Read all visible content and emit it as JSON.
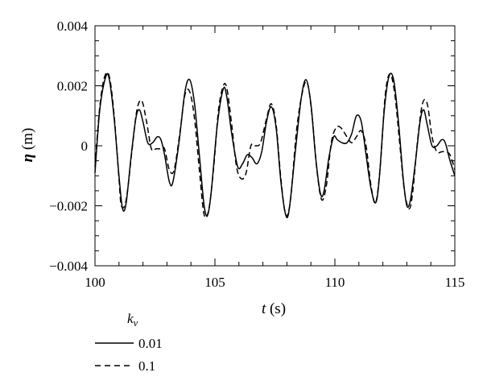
{
  "chart_data": {
    "type": "line",
    "xlabel_symbol": "t",
    "xlabel_unit": " (s)",
    "ylabel_symbol": "η",
    "ylabel_unit": " (m)",
    "xlim": [
      100,
      115
    ],
    "ylim": [
      -0.004,
      0.004
    ],
    "x_ticks": [
      100,
      105,
      110,
      115
    ],
    "x_tick_labels": [
      "100",
      "105",
      "110",
      "115"
    ],
    "y_ticks": [
      -0.004,
      -0.002,
      0,
      0.002,
      0.004
    ],
    "y_tick_labels": [
      "−0.004",
      "−0.002",
      "0",
      "0.002",
      "0.004"
    ],
    "grid": false,
    "legend_title_main": "k",
    "legend_title_sub": "v",
    "legend_placement": "below-left",
    "series": [
      {
        "name": "0.01",
        "style": "solid",
        "color": "#000000",
        "points": [
          [
            100.0,
            -0.0009
          ],
          [
            100.2,
            0.0012
          ],
          [
            100.45,
            0.0023
          ],
          [
            100.6,
            0.0022
          ],
          [
            100.8,
            0.0009
          ],
          [
            101.0,
            -0.001
          ],
          [
            101.15,
            -0.0021
          ],
          [
            101.3,
            -0.0019
          ],
          [
            101.5,
            -0.0004
          ],
          [
            101.7,
            0.0009
          ],
          [
            101.85,
            0.0012
          ],
          [
            102.0,
            0.0008
          ],
          [
            102.2,
            0.0001
          ],
          [
            102.4,
            0.0001
          ],
          [
            102.6,
            0.0003
          ],
          [
            102.75,
            0.0002
          ],
          [
            102.9,
            -0.0003
          ],
          [
            103.1,
            -0.0012
          ],
          [
            103.25,
            -0.0012
          ],
          [
            103.5,
            0.0001
          ],
          [
            103.75,
            0.0018
          ],
          [
            103.95,
            0.0022
          ],
          [
            104.15,
            0.0014
          ],
          [
            104.35,
            -0.0003
          ],
          [
            104.55,
            -0.002
          ],
          [
            104.7,
            -0.0023
          ],
          [
            104.85,
            -0.0015
          ],
          [
            105.1,
            0.0007
          ],
          [
            105.35,
            0.0019
          ],
          [
            105.5,
            0.0016
          ],
          [
            105.7,
            0.0004
          ],
          [
            105.95,
            -0.0007
          ],
          [
            106.15,
            -0.0006
          ],
          [
            106.35,
            -0.0003
          ],
          [
            106.55,
            -0.0004
          ],
          [
            106.75,
            -0.0006
          ],
          [
            106.95,
            -0.0002
          ],
          [
            107.15,
            0.0008
          ],
          [
            107.35,
            0.0013
          ],
          [
            107.55,
            0.0006
          ],
          [
            107.75,
            -0.0012
          ],
          [
            107.95,
            -0.0023
          ],
          [
            108.1,
            -0.0021
          ],
          [
            108.35,
            -0.0002
          ],
          [
            108.6,
            0.0016
          ],
          [
            108.8,
            0.0022
          ],
          [
            109.0,
            0.0014
          ],
          [
            109.2,
            -0.0004
          ],
          [
            109.4,
            -0.0016
          ],
          [
            109.55,
            -0.0015
          ],
          [
            109.75,
            -0.0004
          ],
          [
            109.95,
            0.0003
          ],
          [
            110.1,
            0.0002
          ],
          [
            110.3,
            0.0001
          ],
          [
            110.5,
            0.0001
          ],
          [
            110.7,
            0.0004
          ],
          [
            110.9,
            0.001
          ],
          [
            111.1,
            0.0008
          ],
          [
            111.3,
            -0.0003
          ],
          [
            111.5,
            -0.0014
          ],
          [
            111.7,
            -0.0019
          ],
          [
            111.85,
            -0.0011
          ],
          [
            112.05,
            0.0011
          ],
          [
            112.25,
            0.0023
          ],
          [
            112.45,
            0.0022
          ],
          [
            112.65,
            0.0008
          ],
          [
            112.85,
            -0.0011
          ],
          [
            113.0,
            -0.002
          ],
          [
            113.15,
            -0.0018
          ],
          [
            113.35,
            -0.0006
          ],
          [
            113.55,
            0.0008
          ],
          [
            113.7,
            0.0012
          ],
          [
            113.85,
            0.0007
          ],
          [
            114.05,
            0.0
          ],
          [
            114.25,
            0.0
          ],
          [
            114.45,
            0.0002
          ],
          [
            114.6,
            0.0001
          ],
          [
            114.8,
            -0.0005
          ],
          [
            115.0,
            -0.001
          ]
        ]
      },
      {
        "name": "0.1",
        "style": "dashed",
        "color": "#000000",
        "points": [
          [
            100.0,
            -0.0007
          ],
          [
            100.2,
            0.0013
          ],
          [
            100.4,
            0.0023
          ],
          [
            100.6,
            0.0023
          ],
          [
            100.8,
            0.001
          ],
          [
            101.0,
            -0.0011
          ],
          [
            101.1,
            -0.002
          ],
          [
            101.3,
            -0.0018
          ],
          [
            101.55,
            -0.0001
          ],
          [
            101.75,
            0.0012
          ],
          [
            101.95,
            0.0015
          ],
          [
            102.15,
            0.0008
          ],
          [
            102.35,
            -0.0001
          ],
          [
            102.55,
            -0.0001
          ],
          [
            102.75,
            -0.0001
          ],
          [
            102.9,
            -0.0001
          ],
          [
            103.1,
            -0.0008
          ],
          [
            103.3,
            -0.0008
          ],
          [
            103.55,
            0.0005
          ],
          [
            103.75,
            0.0017
          ],
          [
            103.95,
            0.0018
          ],
          [
            104.15,
            0.0009
          ],
          [
            104.35,
            -0.0008
          ],
          [
            104.55,
            -0.0023
          ],
          [
            104.75,
            -0.0021
          ],
          [
            104.95,
            -0.0007
          ],
          [
            105.15,
            0.0012
          ],
          [
            105.35,
            0.002
          ],
          [
            105.5,
            0.0019
          ],
          [
            105.7,
            0.0007
          ],
          [
            105.9,
            -0.0007
          ],
          [
            106.1,
            -0.0011
          ],
          [
            106.3,
            -0.0009
          ],
          [
            106.5,
            0.0
          ],
          [
            106.7,
            0.0
          ],
          [
            106.9,
            0.0001
          ],
          [
            107.15,
            0.0009
          ],
          [
            107.35,
            0.0014
          ],
          [
            107.55,
            0.0007
          ],
          [
            107.75,
            -0.0011
          ],
          [
            107.95,
            -0.0023
          ],
          [
            108.15,
            -0.0018
          ],
          [
            108.4,
            0.0005
          ],
          [
            108.65,
            0.0018
          ],
          [
            108.85,
            0.0021
          ],
          [
            109.05,
            0.001
          ],
          [
            109.25,
            -0.0008
          ],
          [
            109.45,
            -0.0018
          ],
          [
            109.65,
            -0.0013
          ],
          [
            109.85,
            0.0001
          ],
          [
            110.05,
            0.0006
          ],
          [
            110.25,
            0.0006
          ],
          [
            110.5,
            0.0003
          ],
          [
            110.7,
            0.0001
          ],
          [
            110.9,
            0.0003
          ],
          [
            111.1,
            0.0005
          ],
          [
            111.3,
            0.0
          ],
          [
            111.5,
            -0.0013
          ],
          [
            111.7,
            -0.0019
          ],
          [
            111.9,
            -0.0006
          ],
          [
            112.1,
            0.0017
          ],
          [
            112.3,
            0.0024
          ],
          [
            112.5,
            0.0017
          ],
          [
            112.7,
            0.0001
          ],
          [
            112.9,
            -0.0015
          ],
          [
            113.1,
            -0.0021
          ],
          [
            113.25,
            -0.0015
          ],
          [
            113.45,
            0.0002
          ],
          [
            113.65,
            0.0014
          ],
          [
            113.85,
            0.0014
          ],
          [
            114.05,
            0.0003
          ],
          [
            114.25,
            -0.0002
          ],
          [
            114.45,
            -0.0002
          ],
          [
            114.6,
            -0.0002
          ],
          [
            114.8,
            -0.0003
          ],
          [
            115.0,
            -0.0008
          ]
        ]
      }
    ]
  }
}
